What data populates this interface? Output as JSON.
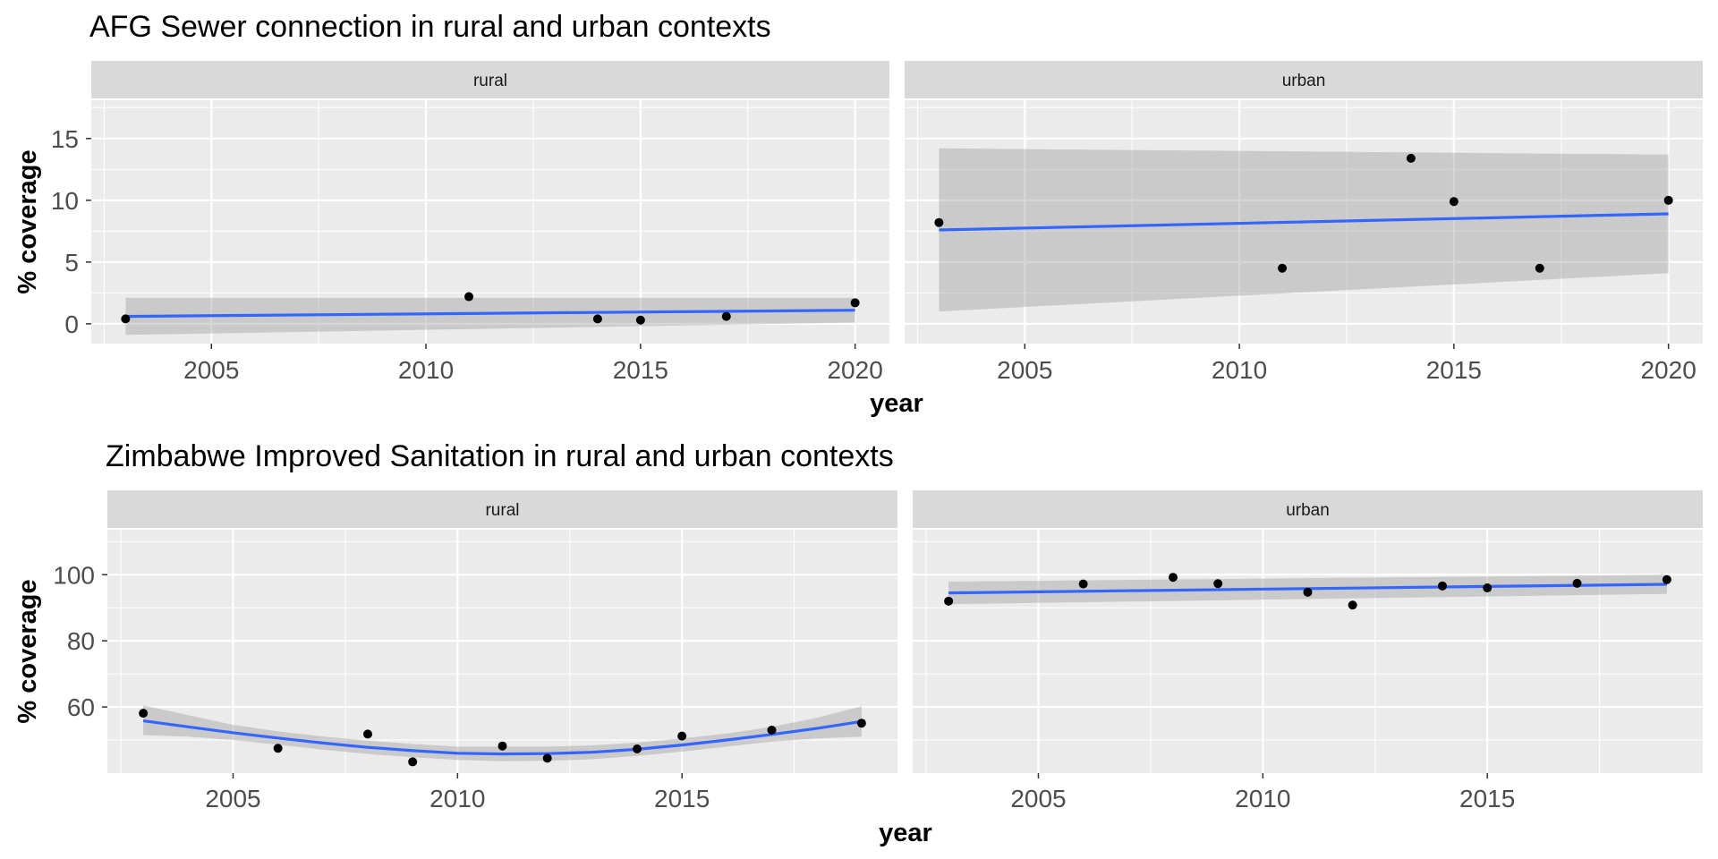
{
  "chart_data": [
    {
      "type": "scatter",
      "title": "AFG Sewer connection in rural and urban contexts",
      "xlabel": "year",
      "ylabel": "% coverage",
      "xlim": [
        2002.2,
        2020.8
      ],
      "ylim": [
        -1.6,
        18.1
      ],
      "xticks": [
        2005,
        2010,
        2015,
        2020
      ],
      "yticks": [
        0,
        5,
        10,
        15
      ],
      "grid": true,
      "colors": {
        "points": "#000000",
        "fit_line": "#3366ff",
        "ribbon": "#999999",
        "panel": "#ebebeb",
        "strip": "#d9d9d9"
      },
      "panels": [
        {
          "strip": "rural",
          "points": [
            [
              2003,
              0.4
            ],
            [
              2011,
              2.2
            ],
            [
              2014,
              0.4
            ],
            [
              2015,
              0.3
            ],
            [
              2017,
              0.6
            ],
            [
              2020,
              1.7
            ]
          ],
          "fit": {
            "x": [
              2003,
              2020
            ],
            "y": [
              0.6,
              1.1
            ],
            "lo": [
              -0.9,
              0.1
            ],
            "hi": [
              2.1,
              2.1
            ]
          }
        },
        {
          "strip": "urban",
          "points": [
            [
              2003,
              8.2
            ],
            [
              2011,
              4.5
            ],
            [
              2014,
              13.4
            ],
            [
              2015,
              9.9
            ],
            [
              2017,
              4.5
            ],
            [
              2020,
              10.0
            ]
          ],
          "fit": {
            "x": [
              2003,
              2020
            ],
            "y": [
              7.6,
              8.9
            ],
            "lo": [
              1.0,
              4.1
            ],
            "hi": [
              14.2,
              13.7
            ]
          }
        }
      ]
    },
    {
      "type": "scatter",
      "title": "Zimbabwe Improved Sanitation in rural and urban contexts",
      "xlabel": "year",
      "ylabel": "% coverage",
      "xlim": [
        2002.2,
        2019.8
      ],
      "ylim": [
        40,
        113.6
      ],
      "xticks": [
        2005,
        2010,
        2015
      ],
      "yticks": [
        60,
        80,
        100
      ],
      "grid": true,
      "colors": {
        "points": "#000000",
        "fit_line": "#3366ff",
        "ribbon": "#999999",
        "panel": "#ebebeb",
        "strip": "#d9d9d9"
      },
      "panels": [
        {
          "strip": "rural",
          "points": [
            [
              2003,
              58.1
            ],
            [
              2006,
              47.5
            ],
            [
              2008,
              51.8
            ],
            [
              2009,
              43.4
            ],
            [
              2011,
              48.2
            ],
            [
              2012,
              44.5
            ],
            [
              2014,
              47.3
            ],
            [
              2015,
              51.2
            ],
            [
              2017,
              53.0
            ],
            [
              2019,
              55.1
            ]
          ],
          "fit": {
            "x": [
              2003,
              2004,
              2005,
              2006,
              2007,
              2008,
              2009,
              2010,
              2011,
              2012,
              2013,
              2014,
              2015,
              2016,
              2017,
              2018,
              2019
            ],
            "y": [
              55.8,
              54.0,
              52.2,
              50.6,
              49.1,
              47.8,
              46.8,
              46.0,
              45.8,
              45.9,
              46.3,
              47.2,
              48.5,
              50.0,
              51.7,
              53.5,
              55.6
            ],
            "lo": [
              51.5,
              51.0,
              50.0,
              48.6,
              47.1,
              45.8,
              44.8,
              44.0,
              43.6,
              43.7,
              44.2,
              45.2,
              46.5,
              48.0,
              49.5,
              50.5,
              51.0
            ],
            "hi": [
              60.5,
              57.5,
              54.6,
              52.6,
              51.1,
              49.8,
              48.8,
              48.0,
              48.0,
              48.0,
              48.4,
              49.2,
              50.5,
              52.0,
              54.0,
              56.7,
              60.2
            ]
          }
        },
        {
          "strip": "urban",
          "points": [
            [
              2003,
              92.0
            ],
            [
              2006,
              97.2
            ],
            [
              2008,
              99.2
            ],
            [
              2009,
              97.3
            ],
            [
              2011,
              94.7
            ],
            [
              2012,
              90.8
            ],
            [
              2014,
              96.6
            ],
            [
              2015,
              96.0
            ],
            [
              2017,
              97.4
            ],
            [
              2019,
              98.5
            ]
          ],
          "fit": {
            "x": [
              2003,
              2019
            ],
            "y": [
              94.5,
              97.1
            ],
            "lo": [
              91.1,
              94.2
            ],
            "hi": [
              97.9,
              100.0
            ]
          }
        }
      ]
    }
  ]
}
